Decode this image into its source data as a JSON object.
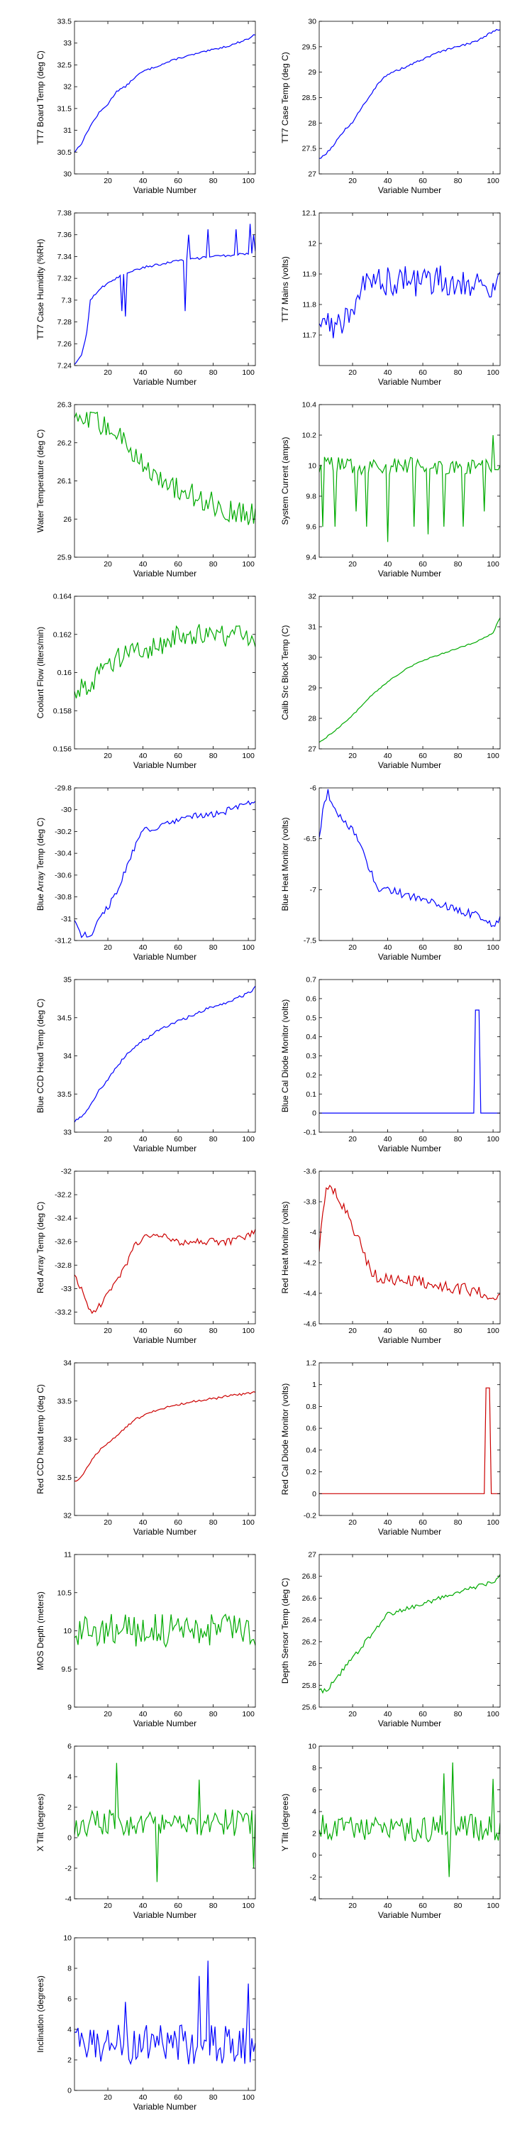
{
  "colors": {
    "blue": "#0000ff",
    "green": "#00aa00",
    "red": "#cc0000"
  },
  "chart_data": [
    {
      "type": "line",
      "color": "blue",
      "ylabel": "TT7 Board Temp (deg C)",
      "xlabel": "Variable Number",
      "xlim": [
        1,
        104
      ],
      "ylim": [
        30,
        33.5
      ],
      "yticks": [
        30,
        30.5,
        31,
        31.5,
        32,
        32.5,
        33,
        33.5
      ],
      "xticks": [
        20,
        40,
        60,
        80,
        100
      ],
      "x": [
        1,
        5,
        10,
        15,
        20,
        25,
        30,
        35,
        40,
        50,
        60,
        70,
        80,
        90,
        100,
        104
      ],
      "y": [
        30.5,
        30.7,
        31.1,
        31.4,
        31.6,
        31.9,
        32.0,
        32.2,
        32.35,
        32.5,
        32.65,
        32.75,
        32.85,
        32.95,
        33.1,
        33.2
      ],
      "noise": 0.02
    },
    {
      "type": "line",
      "color": "blue",
      "ylabel": "TT7 Case Temp (deg C)",
      "xlabel": "Variable Number",
      "xlim": [
        1,
        104
      ],
      "ylim": [
        27,
        30
      ],
      "yticks": [
        27,
        27.5,
        28,
        28.5,
        29,
        29.5,
        30
      ],
      "xticks": [
        20,
        40,
        60,
        80,
        100
      ],
      "x": [
        1,
        5,
        10,
        15,
        20,
        25,
        30,
        35,
        40,
        50,
        60,
        70,
        80,
        90,
        100,
        104
      ],
      "y": [
        27.3,
        27.4,
        27.6,
        27.85,
        28.0,
        28.3,
        28.55,
        28.8,
        28.95,
        29.1,
        29.25,
        29.4,
        29.5,
        29.6,
        29.8,
        29.85
      ],
      "noise": 0.02
    },
    {
      "type": "line",
      "color": "blue",
      "ylabel": "TT7 Case Humidity (%RH)",
      "xlabel": "Variable Number",
      "xlim": [
        1,
        104
      ],
      "ylim": [
        7.24,
        7.38
      ],
      "yticks": [
        7.24,
        7.26,
        7.28,
        7.3,
        7.32,
        7.34,
        7.36,
        7.38
      ],
      "xticks": [
        20,
        40,
        60,
        80,
        100
      ],
      "x": [
        1,
        5,
        8,
        10,
        15,
        20,
        25,
        30,
        40,
        50,
        60,
        70,
        80,
        90,
        100,
        104
      ],
      "y": [
        7.24,
        7.25,
        7.27,
        7.3,
        7.31,
        7.315,
        7.32,
        7.325,
        7.33,
        7.333,
        7.336,
        7.338,
        7.34,
        7.341,
        7.343,
        7.344
      ],
      "spikes": [
        [
          28,
          7.29
        ],
        [
          30,
          7.285
        ],
        [
          64,
          7.29
        ],
        [
          66,
          7.36
        ],
        [
          77,
          7.365
        ],
        [
          93,
          7.365
        ],
        [
          101,
          7.37
        ],
        [
          103,
          7.36
        ]
      ],
      "noise": 0.001
    },
    {
      "type": "line",
      "color": "blue",
      "ylabel": "TT7 Mains  (volts)",
      "xlabel": "Variable Number",
      "xlim": [
        1,
        104
      ],
      "ylim": [
        11.6,
        12.1
      ],
      "yticks": [
        11.7,
        11.8,
        11.9,
        12,
        12.1
      ],
      "xticks": [
        20,
        40,
        60,
        80,
        100
      ],
      "x": [
        1,
        10,
        20,
        30,
        40,
        50,
        60,
        70,
        80,
        90,
        100,
        104
      ],
      "y": [
        11.75,
        11.72,
        11.8,
        11.88,
        11.88,
        11.88,
        11.87,
        11.88,
        11.88,
        11.87,
        11.86,
        11.88
      ],
      "noise": 0.05
    },
    {
      "type": "line",
      "color": "green",
      "ylabel": "Water Temperature (deg C)",
      "xlabel": "Variable Number",
      "xlim": [
        1,
        104
      ],
      "ylim": [
        25.9,
        26.3
      ],
      "yticks": [
        25.9,
        26,
        26.1,
        26.2,
        26.3
      ],
      "xticks": [
        20,
        40,
        60,
        80,
        100
      ],
      "x": [
        1,
        10,
        20,
        30,
        40,
        50,
        60,
        70,
        80,
        90,
        100,
        104
      ],
      "y": [
        26.25,
        26.26,
        26.24,
        26.2,
        26.15,
        26.1,
        26.08,
        26.06,
        26.04,
        26.02,
        26.01,
        26.02
      ],
      "noise": 0.03
    },
    {
      "type": "line",
      "color": "green",
      "ylabel": "System Current (amps)",
      "xlabel": "Variable Number",
      "xlim": [
        1,
        104
      ],
      "ylim": [
        9.4,
        10.4
      ],
      "yticks": [
        9.4,
        9.6,
        9.8,
        10,
        10.2,
        10.4
      ],
      "xticks": [
        20,
        40,
        60,
        80,
        100
      ],
      "x": [
        1,
        104
      ],
      "y": [
        10.0,
        10.0
      ],
      "noise": 0.06,
      "spikes": [
        [
          3,
          9.6
        ],
        [
          10,
          9.6
        ],
        [
          22,
          9.7
        ],
        [
          28,
          9.6
        ],
        [
          40,
          9.5
        ],
        [
          55,
          9.6
        ],
        [
          63,
          9.55
        ],
        [
          72,
          9.6
        ],
        [
          83,
          9.6
        ],
        [
          95,
          9.7
        ],
        [
          100,
          10.2
        ]
      ]
    },
    {
      "type": "line",
      "color": "green",
      "ylabel": "Coolant Flow (liters/min)",
      "xlabel": "Variable Number",
      "xlim": [
        1,
        104
      ],
      "ylim": [
        0.156,
        0.164
      ],
      "yticks": [
        0.156,
        0.158,
        0.16,
        0.162,
        0.164
      ],
      "xticks": [
        20,
        40,
        60,
        80,
        100
      ],
      "x": [
        1,
        10,
        20,
        30,
        40,
        50,
        60,
        70,
        80,
        90,
        100,
        104
      ],
      "y": [
        0.159,
        0.1595,
        0.1605,
        0.161,
        0.161,
        0.1615,
        0.162,
        0.162,
        0.1622,
        0.1618,
        0.162,
        0.1615
      ],
      "noise": 0.0006
    },
    {
      "type": "line",
      "color": "green",
      "ylabel": "Calib Src Block Temp (C)",
      "xlabel": "Variable Number",
      "xlim": [
        1,
        104
      ],
      "ylim": [
        27,
        32
      ],
      "yticks": [
        27,
        28,
        29,
        30,
        31,
        32
      ],
      "xticks": [
        20,
        40,
        60,
        80,
        100
      ],
      "x": [
        1,
        10,
        20,
        30,
        40,
        50,
        60,
        70,
        80,
        90,
        100,
        104
      ],
      "y": [
        27.2,
        27.6,
        28.1,
        28.7,
        29.2,
        29.6,
        29.9,
        30.1,
        30.3,
        30.5,
        30.8,
        31.3
      ],
      "noise": 0.02
    },
    {
      "type": "line",
      "color": "blue",
      "ylabel": "Blue Array Temp (deg C)",
      "xlabel": "Variable Number",
      "xlim": [
        1,
        104
      ],
      "ylim": [
        -31.2,
        -29.8
      ],
      "yticks": [
        -31.2,
        -31,
        -30.8,
        -30.6,
        -30.4,
        -30.2,
        -30,
        -29.8
      ],
      "xticks": [
        20,
        40,
        60,
        80,
        100
      ],
      "x": [
        1,
        5,
        10,
        15,
        20,
        25,
        30,
        35,
        40,
        50,
        60,
        70,
        80,
        90,
        100,
        104
      ],
      "y": [
        -31.0,
        -31.15,
        -31.15,
        -31.0,
        -30.9,
        -30.75,
        -30.55,
        -30.35,
        -30.2,
        -30.15,
        -30.1,
        -30.05,
        -30.05,
        -30.0,
        -29.95,
        -29.9
      ],
      "noise": 0.03
    },
    {
      "type": "line",
      "color": "blue",
      "ylabel": "Blue Heat Monitor (volts)",
      "xlabel": "Variable Number",
      "xlim": [
        1,
        104
      ],
      "ylim": [
        -7.5,
        -6
      ],
      "yticks": [
        -7.5,
        -7,
        -6.5,
        -6
      ],
      "xticks": [
        20,
        40,
        60,
        80,
        100
      ],
      "x": [
        1,
        3,
        6,
        10,
        15,
        20,
        25,
        30,
        35,
        40,
        50,
        60,
        70,
        80,
        90,
        100,
        104
      ],
      "y": [
        -6.5,
        -6.2,
        -6.05,
        -6.2,
        -6.35,
        -6.4,
        -6.6,
        -6.8,
        -7.0,
        -7.0,
        -7.05,
        -7.1,
        -7.15,
        -7.2,
        -7.25,
        -7.35,
        -7.3
      ],
      "noise": 0.04
    },
    {
      "type": "line",
      "color": "blue",
      "ylabel": "Blue CCD Head Temp (deg C)",
      "xlabel": "Variable Number",
      "xlim": [
        1,
        104
      ],
      "ylim": [
        33,
        35
      ],
      "yticks": [
        33,
        33.5,
        34,
        34.5,
        35
      ],
      "xticks": [
        20,
        40,
        60,
        80,
        100
      ],
      "x": [
        1,
        5,
        10,
        15,
        20,
        25,
        30,
        35,
        40,
        50,
        60,
        70,
        80,
        90,
        100,
        104
      ],
      "y": [
        33.15,
        33.2,
        33.35,
        33.55,
        33.7,
        33.85,
        34.0,
        34.1,
        34.2,
        34.35,
        34.45,
        34.55,
        34.65,
        34.72,
        34.82,
        34.9
      ],
      "noise": 0.02
    },
    {
      "type": "line",
      "color": "blue",
      "ylabel": "Blue Cal Diode Monitor (volts)",
      "xlabel": "Variable Number",
      "xlim": [
        1,
        104
      ],
      "ylim": [
        -0.1,
        0.7
      ],
      "yticks": [
        -0.1,
        0,
        0.1,
        0.2,
        0.3,
        0.4,
        0.5,
        0.6,
        0.7
      ],
      "xticks": [
        20,
        40,
        60,
        80,
        100
      ],
      "x": [
        1,
        89,
        90,
        91,
        92,
        93,
        94,
        104
      ],
      "y": [
        0,
        0,
        0.54,
        0.54,
        0.54,
        0,
        0,
        0
      ],
      "noise": 0
    },
    {
      "type": "line",
      "color": "red",
      "ylabel": "Red Array Temp (deg C)",
      "xlabel": "Variable Number",
      "xlim": [
        1,
        104
      ],
      "ylim": [
        -33.3,
        -32
      ],
      "yticks": [
        -33.2,
        -33,
        -32.8,
        -32.6,
        -32.4,
        -32.2,
        -32
      ],
      "xticks": [
        20,
        40,
        60,
        80,
        100
      ],
      "x": [
        1,
        5,
        10,
        15,
        20,
        25,
        30,
        35,
        40,
        50,
        60,
        70,
        80,
        90,
        100,
        104
      ],
      "y": [
        -32.9,
        -33.0,
        -33.2,
        -33.15,
        -33.05,
        -32.95,
        -32.8,
        -32.65,
        -32.55,
        -32.55,
        -32.6,
        -32.6,
        -32.6,
        -32.6,
        -32.55,
        -32.5
      ],
      "noise": 0.03
    },
    {
      "type": "line",
      "color": "red",
      "ylabel": "Red Heat Monitor (volts)",
      "xlabel": "Variable Number",
      "xlim": [
        1,
        104
      ],
      "ylim": [
        -4.6,
        -3.6
      ],
      "yticks": [
        -4.6,
        -4.4,
        -4.2,
        -4,
        -3.8,
        -3.6
      ],
      "xticks": [
        20,
        40,
        60,
        80,
        100
      ],
      "x": [
        1,
        3,
        6,
        10,
        15,
        20,
        25,
        30,
        35,
        40,
        50,
        60,
        70,
        80,
        90,
        100,
        104
      ],
      "y": [
        -4.1,
        -3.85,
        -3.68,
        -3.75,
        -3.85,
        -3.95,
        -4.1,
        -4.25,
        -4.3,
        -4.3,
        -4.32,
        -4.33,
        -4.35,
        -4.37,
        -4.38,
        -4.42,
        -4.4
      ],
      "noise": 0.04
    },
    {
      "type": "line",
      "color": "red",
      "ylabel": "Red CCD head temp (deg C)",
      "xlabel": "Variable Number",
      "xlim": [
        1,
        104
      ],
      "ylim": [
        32,
        34
      ],
      "yticks": [
        32,
        32.5,
        33,
        33.5,
        34
      ],
      "xticks": [
        20,
        40,
        60,
        80,
        100
      ],
      "x": [
        1,
        5,
        10,
        15,
        20,
        25,
        30,
        35,
        40,
        50,
        60,
        70,
        80,
        90,
        100,
        104
      ],
      "y": [
        32.45,
        32.5,
        32.7,
        32.85,
        32.95,
        33.05,
        33.15,
        33.25,
        33.3,
        33.4,
        33.45,
        33.5,
        33.53,
        33.57,
        33.6,
        33.62
      ],
      "noise": 0.015
    },
    {
      "type": "line",
      "color": "red",
      "ylabel": "Red Cal Diode Monitor (volts)",
      "xlabel": "Variable Number",
      "xlim": [
        1,
        104
      ],
      "ylim": [
        -0.2,
        1.2
      ],
      "yticks": [
        -0.2,
        0,
        0.2,
        0.4,
        0.6,
        0.8,
        1,
        1.2
      ],
      "xticks": [
        20,
        40,
        60,
        80,
        100
      ],
      "x": [
        1,
        95,
        96,
        97,
        98,
        99,
        104
      ],
      "y": [
        0,
        0,
        0.97,
        0.97,
        0.97,
        0,
        0
      ],
      "noise": 0
    },
    {
      "type": "line",
      "color": "green",
      "ylabel": "MOS Depth  (meters)",
      "xlabel": "Variable Number",
      "xlim": [
        1,
        104
      ],
      "ylim": [
        9,
        11
      ],
      "yticks": [
        9,
        9.5,
        10,
        10.5,
        11
      ],
      "xticks": [
        20,
        40,
        60,
        80,
        100
      ],
      "x": [
        1,
        104
      ],
      "y": [
        10.0,
        10.0
      ],
      "noise": 0.22
    },
    {
      "type": "line",
      "color": "green",
      "ylabel": "Depth Sensor Temp (deg C)",
      "xlabel": "Variable Number",
      "xlim": [
        1,
        104
      ],
      "ylim": [
        25.6,
        27
      ],
      "yticks": [
        25.6,
        25.8,
        26,
        26.2,
        26.4,
        26.6,
        26.8,
        27
      ],
      "xticks": [
        20,
        40,
        60,
        80,
        100
      ],
      "x": [
        1,
        5,
        10,
        15,
        20,
        25,
        30,
        35,
        40,
        50,
        60,
        70,
        80,
        90,
        100,
        104
      ],
      "y": [
        25.75,
        25.75,
        25.85,
        25.95,
        26.05,
        26.15,
        26.25,
        26.35,
        26.45,
        26.5,
        26.55,
        26.6,
        26.65,
        26.7,
        26.75,
        26.8
      ],
      "noise": 0.02
    },
    {
      "type": "line",
      "color": "green",
      "ylabel": "X Tilt  (degrees)",
      "xlabel": "Variable Number",
      "xlim": [
        1,
        104
      ],
      "ylim": [
        -4,
        6
      ],
      "yticks": [
        -4,
        -2,
        0,
        2,
        4,
        6
      ],
      "xticks": [
        20,
        40,
        60,
        80,
        100
      ],
      "x": [
        1,
        104
      ],
      "y": [
        1.0,
        1.0
      ],
      "noise": 0.9,
      "spikes": [
        [
          25,
          4.9
        ],
        [
          48,
          -2.9
        ],
        [
          72,
          3.8
        ],
        [
          103,
          -2.0
        ]
      ]
    },
    {
      "type": "line",
      "color": "green",
      "ylabel": "Y Tilt  (degrees)",
      "xlabel": "Variable Number",
      "xlim": [
        1,
        104
      ],
      "ylim": [
        -4,
        10
      ],
      "yticks": [
        -4,
        -2,
        0,
        2,
        4,
        6,
        8,
        10
      ],
      "xticks": [
        20,
        40,
        60,
        80,
        100
      ],
      "x": [
        1,
        104
      ],
      "y": [
        2.5,
        2.5
      ],
      "noise": 1.3,
      "spikes": [
        [
          72,
          7.5
        ],
        [
          77,
          8.5
        ],
        [
          75,
          -2.0
        ],
        [
          100,
          7.0
        ]
      ]
    },
    {
      "type": "line",
      "color": "blue",
      "ylabel": "Inclination  (degrees)",
      "xlabel": "Variable Number",
      "xlim": [
        1,
        104
      ],
      "ylim": [
        0,
        10
      ],
      "yticks": [
        0,
        2,
        4,
        6,
        8,
        10
      ],
      "xticks": [
        20,
        40,
        60,
        80,
        100
      ],
      "x": [
        1,
        104
      ],
      "y": [
        3.0,
        3.0
      ],
      "noise": 1.3,
      "spikes": [
        [
          72,
          7.5
        ],
        [
          77,
          8.5
        ],
        [
          30,
          5.8
        ],
        [
          100,
          7.0
        ]
      ]
    }
  ]
}
